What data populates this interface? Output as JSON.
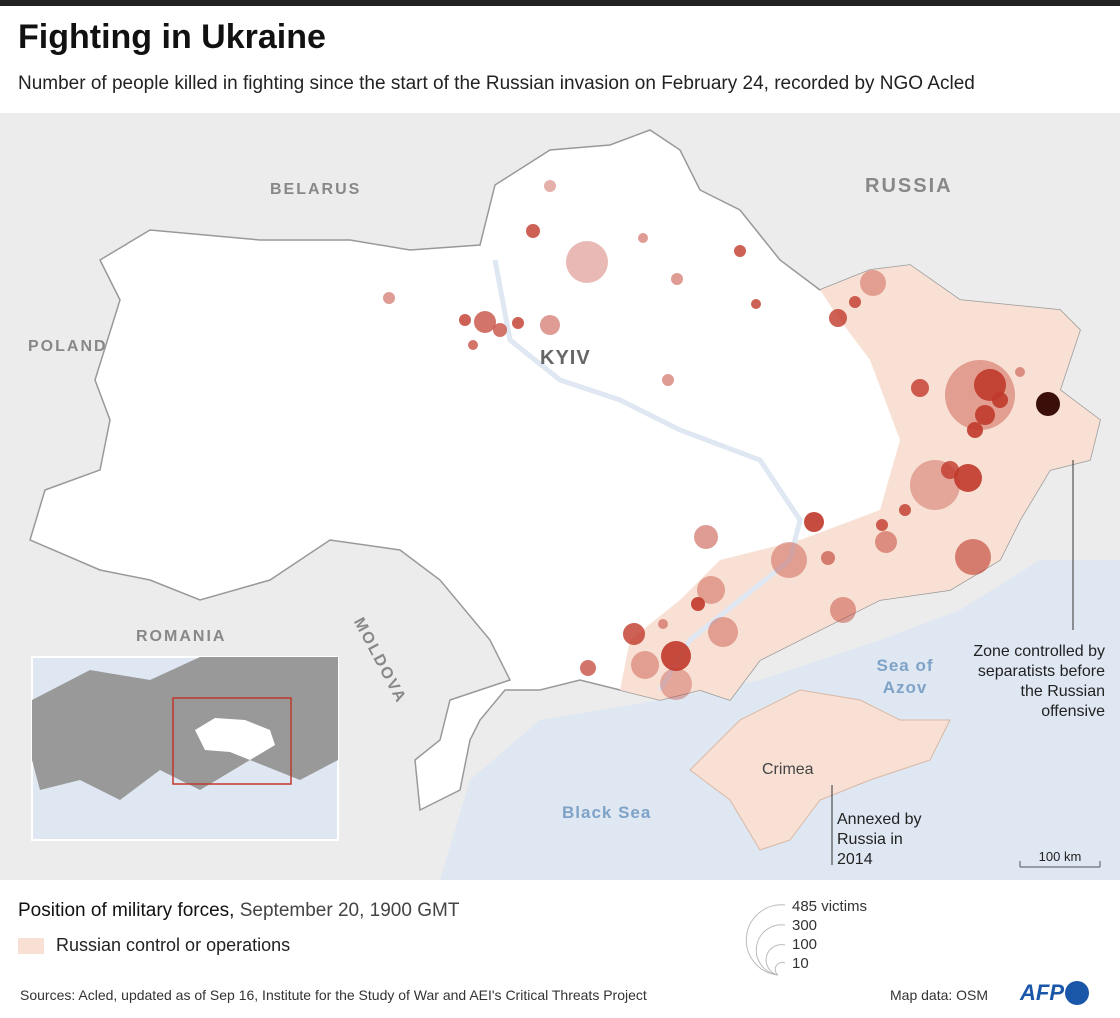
{
  "title": "Fighting in Ukraine",
  "subtitle": "Number of people killed in fighting since the start of the Russian invasion on February 24, recorded by NGO Acled",
  "labels": {
    "belarus": "BELARUS",
    "russia": "RUSSIA",
    "poland": "POLAND",
    "romania": "ROMANIA",
    "moldova": "MOLDOVA",
    "kyiv": "KYIV",
    "crimea": "Crimea",
    "black_sea": "Black Sea",
    "sea_of_azov": "Sea of Azov"
  },
  "notes": {
    "separatists": "Zone controlled by separatists before the Russian offensive",
    "crimea": "Annexed by Russia in 2014",
    "scale": "100 km"
  },
  "legend": {
    "title_bold": "Position of military forces,",
    "title_date": "September 20, 1900 GMT",
    "item": "Russian control or operations",
    "sizes": [
      "485 victims",
      "300",
      "100",
      "10"
    ]
  },
  "footer": {
    "sources": "Sources: Acled, updated as of Sep 16, Institute for the Study of War and AEI's Critical Threats Project",
    "map_data": "Map data: OSM",
    "logo": "AFP"
  },
  "colors": {
    "land": "#ececec",
    "ukraine": "#ffffff",
    "sea": "#dfe7f2",
    "russian_control": "#f8e1d4",
    "dot": "#c0392b",
    "dot_dark": "#3a0f0a"
  }
}
